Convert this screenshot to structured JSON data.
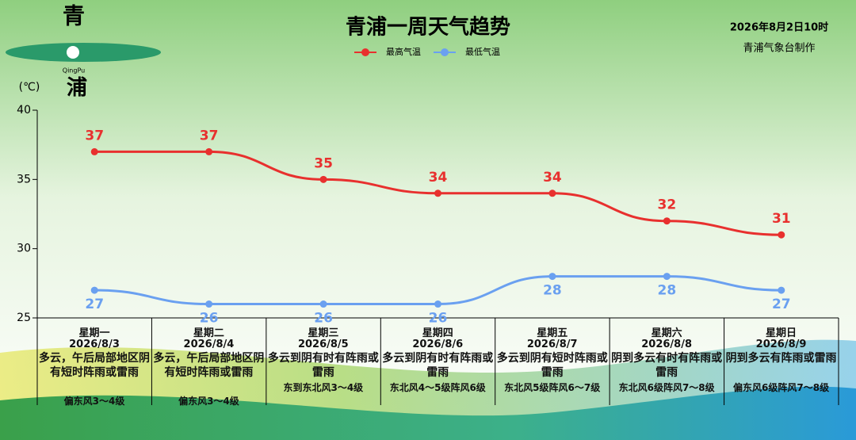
{
  "chart_data": {
    "type": "line",
    "title": "青浦一周天气趋势",
    "y_unit": "(℃)",
    "categories": [
      "星期一",
      "星期二",
      "星期三",
      "星期四",
      "星期五",
      "星期六",
      "星期日"
    ],
    "dates": [
      "2026/8/3",
      "2026/8/4",
      "2026/8/5",
      "2026/8/6",
      "2026/8/7",
      "2026/8/8",
      "2026/8/9"
    ],
    "weather": [
      "多云，午后局部地区阴有短时阵雨或雷雨",
      "多云，午后局部地区阴有短时阵雨或雷雨",
      "多云到阴有时有阵雨或雷雨",
      "多云到阴有时有阵雨或雷雨",
      "多云到阴有短时阵雨或雷雨",
      "阴到多云有时有阵雨或雷雨",
      "阴到多云有阵雨或雷雨"
    ],
    "wind": [
      "偏东风3～4级",
      "偏东风3～4级",
      "东到东北风3～4级",
      "东北风4～5级阵风6级",
      "东北风5级阵风6～7级",
      "东北风6级阵风7～8级",
      "偏东风6级阵风7～8级"
    ],
    "series": [
      {
        "name": "最高气温",
        "color": "#e8302e",
        "values": [
          37,
          37,
          35,
          34,
          34,
          32,
          31
        ]
      },
      {
        "name": "最低气温",
        "color": "#6aa0f0",
        "values": [
          27,
          26,
          26,
          26,
          28,
          28,
          27
        ]
      }
    ],
    "ylim": [
      25,
      40
    ],
    "yticks": [
      25,
      30,
      35,
      40
    ],
    "legend": "top"
  },
  "header": {
    "issue_time": "2026年8月2日10时",
    "producer": "青浦气象台制作"
  },
  "logo": {
    "top": "青",
    "latin": "QingPu",
    "bottom": "浦"
  }
}
